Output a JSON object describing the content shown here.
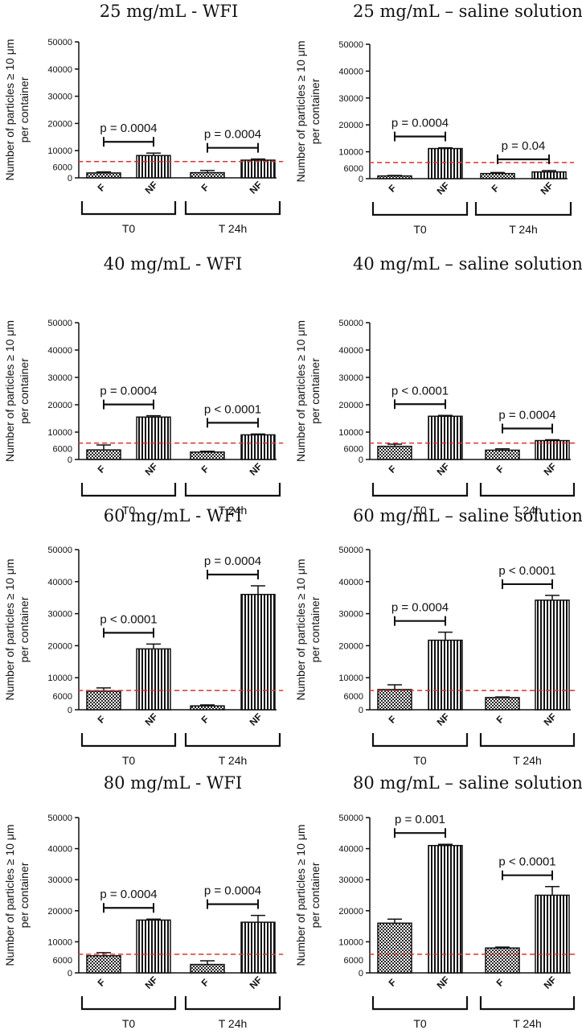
{
  "figure": {
    "ylabel_line1": "Number of particles ≥ 10 μm",
    "ylabel_line2": "per container",
    "yticks": [
      0,
      10000,
      20000,
      30000,
      40000,
      50000
    ],
    "threshold": 6000,
    "threshold_label": "6000",
    "threshold_color": "#e03030",
    "bar_labels": [
      "F",
      "NF"
    ],
    "group_labels": [
      "T0",
      "T 24h"
    ],
    "bar_patterns": {
      "F": "checkerboard",
      "NF": "vertical-stripes"
    }
  },
  "chart_data": [
    {
      "type": "bar",
      "title": "25 mg/mL - WFI",
      "ylim": [
        0,
        50000
      ],
      "categories": [
        "T0 F",
        "T0 NF",
        "T 24h F",
        "T 24h NF"
      ],
      "values": [
        1800,
        8200,
        1900,
        6500
      ],
      "errors": [
        400,
        900,
        800,
        400
      ],
      "pvalues": [
        "p = 0.0004",
        "p = 0.0004"
      ]
    },
    {
      "type": "bar",
      "title": "25 mg/mL – saline solution",
      "ylim": [
        0,
        50000
      ],
      "categories": [
        "T0 F",
        "T0 NF",
        "T 24h F",
        "T 24h NF"
      ],
      "values": [
        1000,
        11200,
        1900,
        2500
      ],
      "errors": [
        200,
        300,
        400,
        500
      ],
      "pvalues": [
        "p = 0.0004",
        "p = 0.04"
      ]
    },
    {
      "type": "bar",
      "title": "40 mg/mL - WFI",
      "ylim": [
        0,
        50000
      ],
      "categories": [
        "T0 F",
        "T0 NF",
        "T 24h F",
        "T 24h NF"
      ],
      "values": [
        3500,
        15500,
        2700,
        9000
      ],
      "errors": [
        1800,
        500,
        300,
        300
      ],
      "pvalues": [
        "p = 0.0004",
        "p < 0.0001"
      ]
    },
    {
      "type": "bar",
      "title": "40 mg/mL – saline solution",
      "ylim": [
        0,
        50000
      ],
      "categories": [
        "T0 F",
        "T0 NF",
        "T 24h F",
        "T 24h NF"
      ],
      "values": [
        4800,
        15800,
        3400,
        6900
      ],
      "errors": [
        800,
        300,
        500,
        300
      ],
      "pvalues": [
        "p < 0.0001",
        "p = 0.0004"
      ]
    },
    {
      "type": "bar",
      "title": "60 mg/mL - WFI",
      "ylim": [
        0,
        50000
      ],
      "categories": [
        "T0 F",
        "T0 NF",
        "T 24h F",
        "T 24h NF"
      ],
      "values": [
        5800,
        19000,
        1200,
        36000
      ],
      "errors": [
        1000,
        1500,
        300,
        2700
      ],
      "pvalues": [
        "p < 0.0001",
        "p = 0.0004"
      ]
    },
    {
      "type": "bar",
      "title": "60 mg/mL – saline solution",
      "ylim": [
        0,
        50000
      ],
      "categories": [
        "T0 F",
        "T0 NF",
        "T 24h F",
        "T 24h NF"
      ],
      "values": [
        6300,
        21700,
        3800,
        34200
      ],
      "errors": [
        1500,
        2500,
        200,
        1500
      ],
      "pvalues": [
        "p = 0.0004",
        "p < 0.0001"
      ]
    },
    {
      "type": "bar",
      "title": "80 mg/mL - WFI",
      "ylim": [
        0,
        50000
      ],
      "categories": [
        "T0 F",
        "T0 NF",
        "T 24h F",
        "T 24h NF"
      ],
      "values": [
        5500,
        17000,
        2700,
        16300
      ],
      "errors": [
        1000,
        300,
        1200,
        2200
      ],
      "pvalues": [
        "p = 0.0004",
        "p = 0.0004"
      ]
    },
    {
      "type": "bar",
      "title": "80 mg/mL – saline solution",
      "ylim": [
        0,
        50000
      ],
      "categories": [
        "T0 F",
        "T0 NF",
        "T 24h F",
        "T 24h NF"
      ],
      "values": [
        16000,
        41000,
        8000,
        25000
      ],
      "errors": [
        1300,
        400,
        300,
        2800
      ],
      "pvalues": [
        "p = 0.001",
        "p < 0.0001"
      ]
    }
  ]
}
